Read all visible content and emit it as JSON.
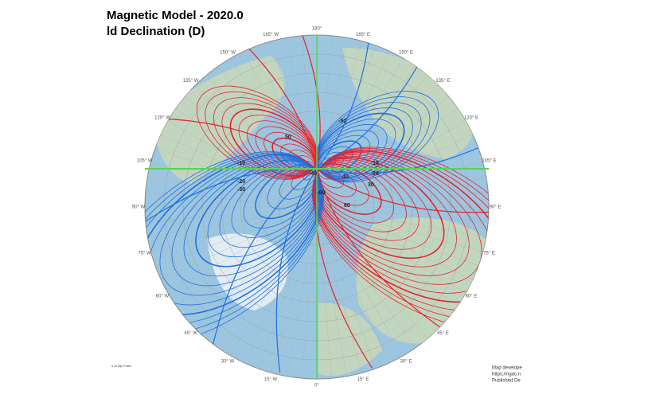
{
  "header": {
    "title": "Magnetic Model - 2020.0",
    "subtitle": "ld Declination (D)"
  },
  "longitude_labels": [
    "180°",
    "165° E",
    "150° E",
    "135° E",
    "120° E",
    "105° E",
    "90° E",
    "75° E",
    "60° E",
    "45° E",
    "30° E",
    "15° E",
    "0°",
    "15° W",
    "30° W",
    "45° W",
    "60° W",
    "75° W",
    "90° W",
    "105° W",
    "120° W",
    "135° W",
    "150° W",
    "165° W"
  ],
  "contour_labels": [
    "-10",
    "-20",
    "-30",
    "10",
    "20",
    "30",
    "-40",
    "40",
    "-50",
    "50",
    "-60",
    "60"
  ],
  "footer": {
    "left": "n of Dip Poles",
    "right": [
      "Map develope",
      "https://ngdc.n",
      "Published De"
    ]
  }
}
